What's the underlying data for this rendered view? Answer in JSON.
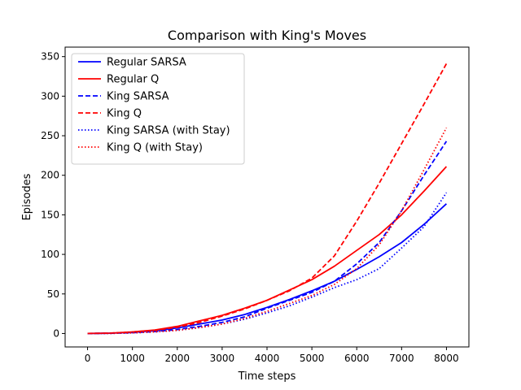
{
  "chart_data": {
    "type": "line",
    "title": "Comparison with King's Moves",
    "xlabel": "Time steps",
    "ylabel": "Episodes",
    "xlim": [
      -500,
      8500
    ],
    "ylim": [
      -17,
      362
    ],
    "xticks": [
      0,
      1000,
      2000,
      3000,
      4000,
      5000,
      6000,
      7000,
      8000
    ],
    "yticks": [
      0,
      50,
      100,
      150,
      200,
      250,
      300,
      350
    ],
    "grid": false,
    "legend_position": "top-left",
    "series": [
      {
        "name": "Regular SARSA",
        "color": "#0000ff",
        "linestyle": "solid",
        "x": [
          0,
          500,
          1000,
          1500,
          2000,
          2500,
          3000,
          3500,
          4000,
          4500,
          5000,
          5500,
          6000,
          6500,
          7000,
          7500,
          8000
        ],
        "y": [
          0,
          0.4,
          1.5,
          3.5,
          7,
          12,
          17,
          24,
          33,
          43,
          54,
          66,
          81,
          97,
          115,
          138,
          164
        ]
      },
      {
        "name": "Regular Q",
        "color": "#ff0000",
        "linestyle": "solid",
        "x": [
          0,
          500,
          1000,
          1500,
          2000,
          2500,
          3000,
          3500,
          4000,
          4500,
          5000,
          5500,
          6000,
          6500,
          7000,
          7500,
          8000
        ],
        "y": [
          0,
          0.5,
          2,
          4.5,
          9,
          16,
          23,
          32,
          42,
          55,
          68,
          85,
          105,
          125,
          150,
          180,
          211
        ]
      },
      {
        "name": "King SARSA",
        "color": "#0000ff",
        "linestyle": "dashed",
        "x": [
          0,
          500,
          1000,
          1500,
          2000,
          2500,
          3000,
          3500,
          4000,
          4500,
          5000,
          5500,
          6000,
          6500,
          7000,
          7500,
          8000
        ],
        "y": [
          0,
          0.3,
          1,
          2.5,
          5,
          9,
          14,
          21,
          32,
          42,
          52,
          66,
          88,
          115,
          155,
          200,
          243
        ]
      },
      {
        "name": "King Q",
        "color": "#ff0000",
        "linestyle": "dashed",
        "x": [
          0,
          500,
          1000,
          1500,
          2000,
          2500,
          3000,
          3500,
          4000,
          4500,
          5000,
          5500,
          6000,
          6500,
          7000,
          7500,
          8000
        ],
        "y": [
          0,
          0.5,
          2,
          4,
          8,
          14,
          22,
          31,
          42,
          54,
          70,
          98,
          142,
          190,
          240,
          290,
          341
        ]
      },
      {
        "name": "King SARSA (with Stay)",
        "color": "#0000ff",
        "linestyle": "dotted",
        "x": [
          0,
          500,
          1000,
          1500,
          2000,
          2500,
          3000,
          3500,
          4000,
          4500,
          5000,
          5500,
          6000,
          6500,
          7000,
          7500,
          8000
        ],
        "y": [
          0,
          0.2,
          0.8,
          2,
          4,
          7.5,
          12,
          18,
          26,
          35,
          46,
          58,
          68,
          82,
          108,
          135,
          178
        ]
      },
      {
        "name": "King Q (with Stay)",
        "color": "#ff0000",
        "linestyle": "dotted",
        "x": [
          0,
          500,
          1000,
          1500,
          2000,
          2500,
          3000,
          3500,
          4000,
          4500,
          5000,
          5500,
          6000,
          6500,
          7000,
          7500,
          8000
        ],
        "y": [
          0,
          0.2,
          0.8,
          2,
          4,
          7.5,
          12,
          19,
          28,
          38,
          48,
          62,
          82,
          112,
          155,
          207,
          260
        ]
      }
    ]
  }
}
